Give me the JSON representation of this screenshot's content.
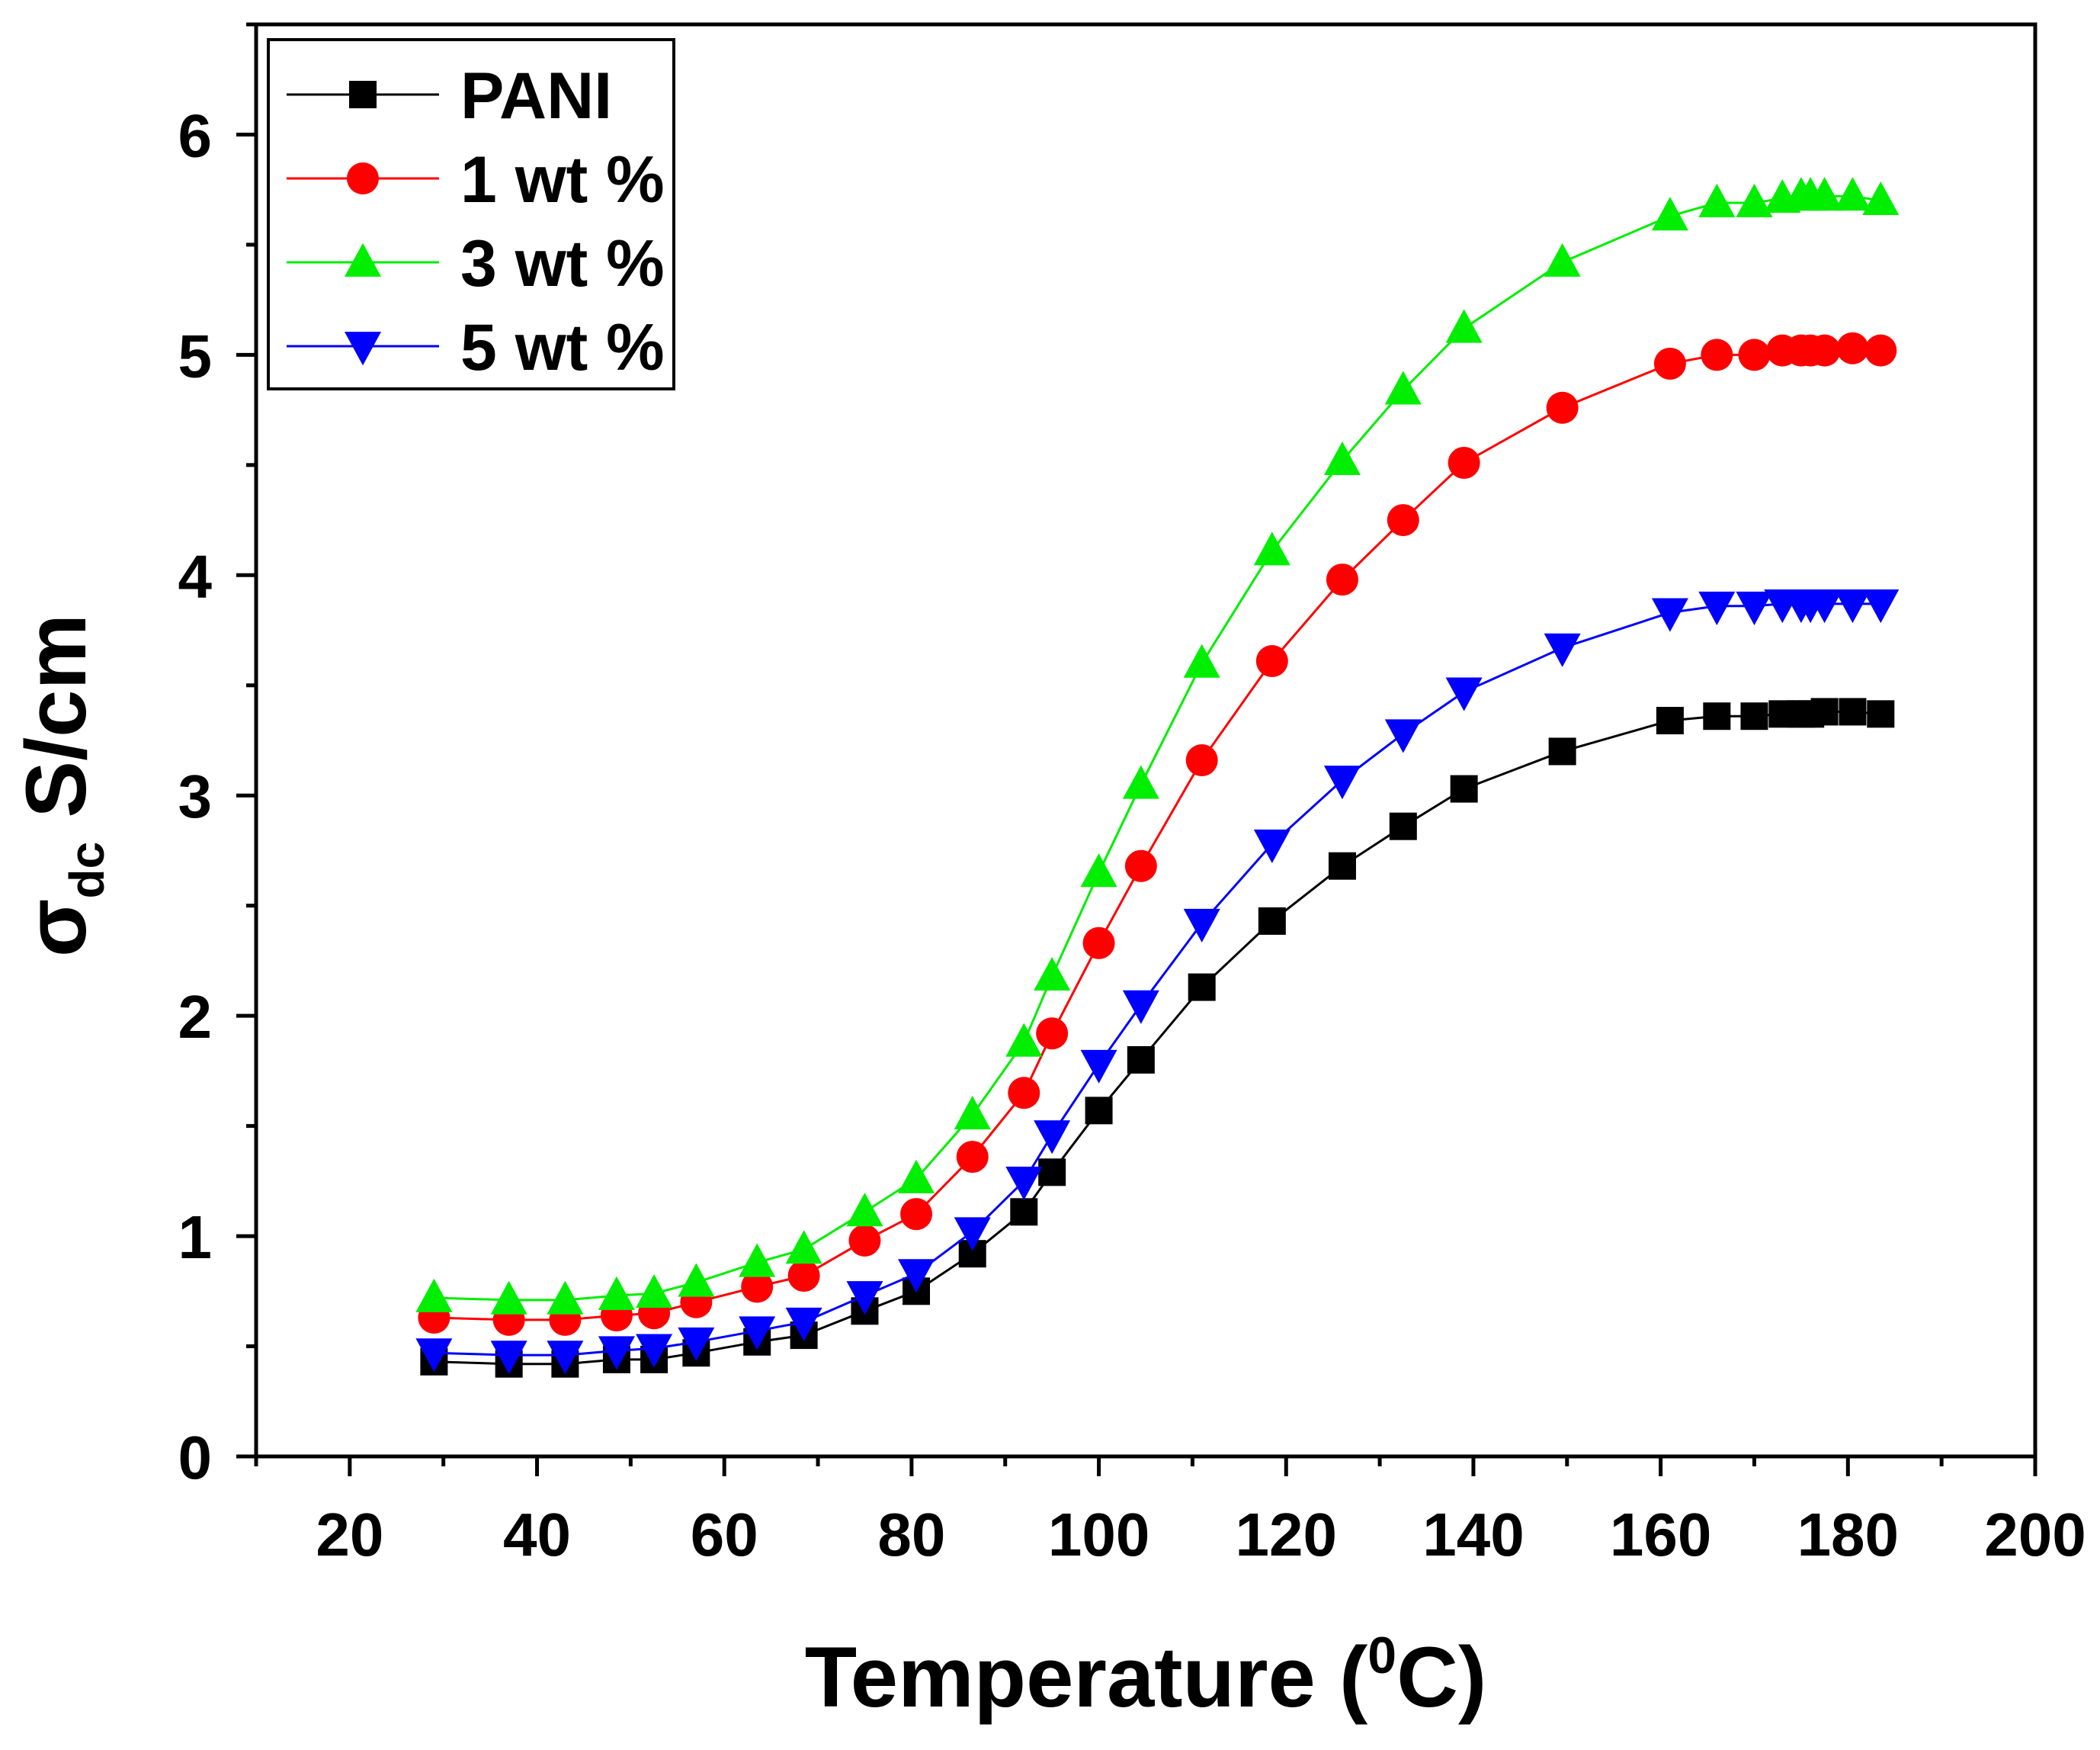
{
  "chart_data": {
    "type": "line",
    "title": "",
    "xlabel": {
      "main": "Temperature (",
      "sup": "0",
      "tail": "C)"
    },
    "ylabel": {
      "symbol": "σ",
      "sub": "dc",
      "tail": " S/cm"
    },
    "xlim": [
      10,
      200
    ],
    "ylim": [
      0,
      6.5
    ],
    "x_ticks": [
      20,
      40,
      60,
      80,
      100,
      120,
      140,
      160,
      180,
      200
    ],
    "y_ticks": [
      0,
      1,
      2,
      3,
      4,
      5,
      6
    ],
    "legend_position": "top-left",
    "x": [
      29,
      37,
      43,
      48.5,
      52.5,
      57,
      63.5,
      68.5,
      75,
      80.5,
      86.5,
      92,
      95,
      100,
      104.5,
      111,
      118.5,
      126,
      132.5,
      139,
      149.5,
      161,
      166,
      170,
      173,
      175,
      176,
      177.5,
      180.5,
      183.5
    ],
    "series": [
      {
        "name": "PANI",
        "color": "#000000",
        "marker": "square",
        "values": [
          0.43,
          0.42,
          0.42,
          0.44,
          0.44,
          0.47,
          0.52,
          0.55,
          0.66,
          0.75,
          0.92,
          1.11,
          1.29,
          1.57,
          1.8,
          2.13,
          2.43,
          2.68,
          2.86,
          3.03,
          3.2,
          3.34,
          3.36,
          3.36,
          3.37,
          3.37,
          3.37,
          3.38,
          3.38,
          3.37
        ]
      },
      {
        "name": "1 wt %",
        "color": "#ff0000",
        "marker": "circle",
        "values": [
          0.63,
          0.62,
          0.62,
          0.64,
          0.65,
          0.7,
          0.77,
          0.82,
          0.98,
          1.1,
          1.36,
          1.65,
          1.92,
          2.33,
          2.68,
          3.16,
          3.61,
          3.98,
          4.25,
          4.51,
          4.76,
          4.96,
          5.0,
          5.0,
          5.02,
          5.02,
          5.02,
          5.02,
          5.03,
          5.02
        ]
      },
      {
        "name": "3 wt %",
        "color": "#00ee00",
        "marker": "triangle-up",
        "values": [
          0.72,
          0.71,
          0.71,
          0.73,
          0.74,
          0.79,
          0.88,
          0.94,
          1.11,
          1.26,
          1.55,
          1.88,
          2.18,
          2.65,
          3.05,
          3.6,
          4.11,
          4.52,
          4.84,
          5.12,
          5.42,
          5.63,
          5.69,
          5.69,
          5.71,
          5.72,
          5.72,
          5.72,
          5.72,
          5.7
        ]
      },
      {
        "name": "5 wt %",
        "color": "#0000ff",
        "marker": "triangle-down",
        "values": [
          0.47,
          0.46,
          0.46,
          0.48,
          0.49,
          0.52,
          0.57,
          0.61,
          0.73,
          0.83,
          1.02,
          1.25,
          1.46,
          1.78,
          2.05,
          2.42,
          2.78,
          3.07,
          3.28,
          3.47,
          3.67,
          3.83,
          3.86,
          3.86,
          3.87,
          3.87,
          3.87,
          3.87,
          3.87,
          3.87
        ]
      }
    ]
  }
}
